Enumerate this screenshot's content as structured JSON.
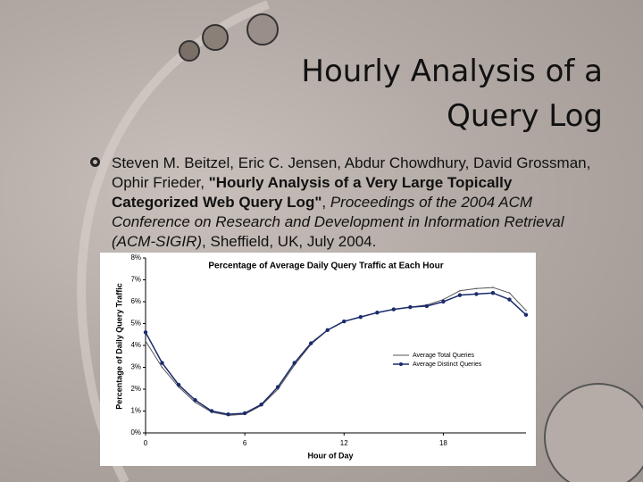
{
  "slide": {
    "title_lines": [
      "Hourly Analysis of a",
      "Query Log"
    ],
    "bullet": [
      {
        "text": "Steven M. Beitzel, Eric C. Jensen, Abdur Chowdhury, David Grossman, Ophir Frieder, ",
        "style": "normal"
      },
      {
        "text": "\"Hourly Analysis of a Very Large Topically Categorized Web Query Log\"",
        "style": "bold"
      },
      {
        "text": ", ",
        "style": "normal"
      },
      {
        "text": "Proceedings of the 2004 ACM Conference on Research and Development in Information Retrieval (ACM-SIGIR)",
        "style": "italic"
      },
      {
        "text": ", Sheffield, UK, July 2004.",
        "style": "normal"
      }
    ]
  },
  "chart_data": {
    "type": "line",
    "title": "Percentage of Average Daily Query Traffic at Each Hour",
    "x_label": "Hour of Day",
    "y_label": "Percentage of Daily Query Traffic",
    "x": [
      0,
      1,
      2,
      3,
      4,
      5,
      6,
      7,
      8,
      9,
      10,
      11,
      12,
      13,
      14,
      15,
      16,
      17,
      18,
      19,
      20,
      21,
      22,
      23
    ],
    "xlim": [
      0,
      23
    ],
    "xticks": [
      0,
      6,
      12,
      18
    ],
    "ylim": [
      0,
      8
    ],
    "yticks": [
      {
        "value": 0,
        "label": "0%"
      },
      {
        "value": 1,
        "label": "1%"
      },
      {
        "value": 2,
        "label": "2%"
      },
      {
        "value": 3,
        "label": "3%"
      },
      {
        "value": 4,
        "label": "4%"
      },
      {
        "value": 5,
        "label": "5%"
      },
      {
        "value": 6,
        "label": "6%"
      },
      {
        "value": 7,
        "label": "7%"
      },
      {
        "value": 8,
        "label": "8%"
      }
    ],
    "legend": "center right",
    "series": [
      {
        "name": "Average Total Queries",
        "color": "#555555",
        "marker": "none",
        "values": [
          4.2,
          3.0,
          2.1,
          1.4,
          0.95,
          0.8,
          0.85,
          1.25,
          2.0,
          3.1,
          4.05,
          4.7,
          5.1,
          5.3,
          5.5,
          5.65,
          5.75,
          5.85,
          6.1,
          6.5,
          6.6,
          6.65,
          6.4,
          5.6
        ]
      },
      {
        "name": "Average Distinct Queries",
        "color": "#1a2a6c",
        "marker": "circle",
        "values": [
          4.6,
          3.2,
          2.2,
          1.5,
          1.0,
          0.85,
          0.9,
          1.3,
          2.1,
          3.2,
          4.1,
          4.7,
          5.1,
          5.3,
          5.5,
          5.65,
          5.75,
          5.8,
          6.0,
          6.3,
          6.35,
          6.4,
          6.1,
          5.4
        ]
      }
    ]
  }
}
